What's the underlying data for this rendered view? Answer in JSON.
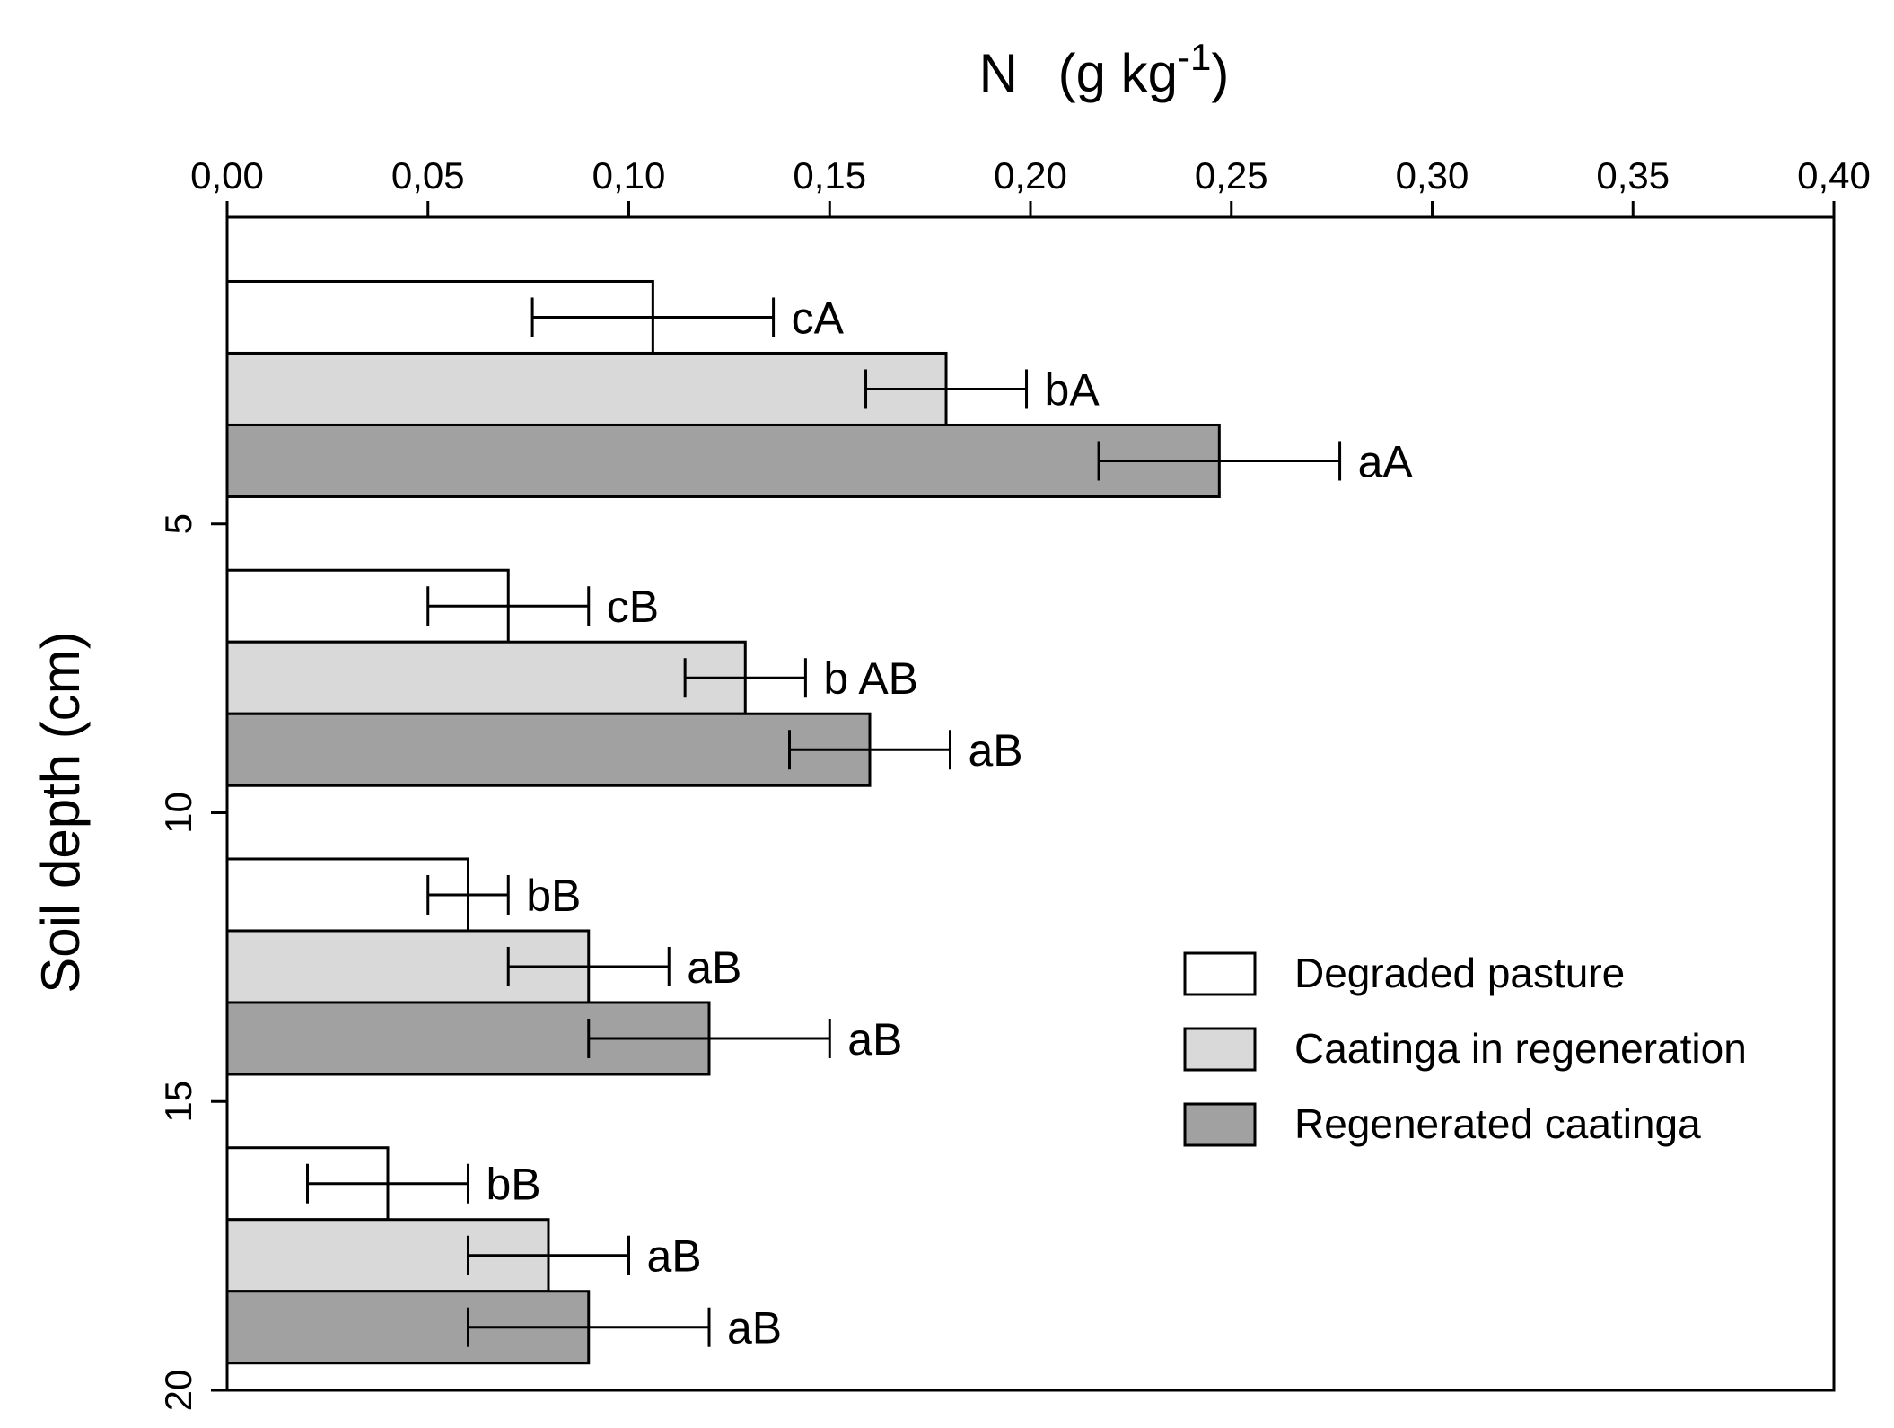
{
  "chart_data": {
    "type": "bar",
    "orientation": "horizontal",
    "title": "",
    "xlabel": "N",
    "xlabel_unit_prefix": "(g kg",
    "xlabel_unit_sup": "-1",
    "xlabel_unit_suffix": ")",
    "ylabel": "Soil depth (cm)",
    "xlim": [
      0,
      0.4
    ],
    "ylim": [
      0,
      20
    ],
    "x_ticks": [
      "0,00",
      "0,05",
      "0,10",
      "0,15",
      "0,20",
      "0,25",
      "0,30",
      "0,35",
      "0,40"
    ],
    "y_ticks": [
      "5",
      "10",
      "15",
      "20"
    ],
    "categories": [
      "0-5",
      "5-10",
      "10-15",
      "15-20"
    ],
    "legend_position": "lower-right",
    "colors": {
      "Degraded pasture": "#ffffff",
      "Caatinga in regeneration": "#d9d9d9",
      "Regenerated caatinga": "#a1a1a1",
      "stroke": "#000000"
    },
    "series": [
      {
        "name": "Degraded pasture",
        "values": [
          0.106,
          0.07,
          0.06,
          0.04
        ],
        "errors": [
          0.03,
          0.02,
          0.01,
          0.02
        ],
        "labels": [
          "cA",
          "cB",
          "bB",
          "bB"
        ]
      },
      {
        "name": "Caatinga in regeneration",
        "values": [
          0.179,
          0.129,
          0.09,
          0.08
        ],
        "errors": [
          0.02,
          0.015,
          0.02,
          0.02
        ],
        "labels": [
          "bA",
          "b AB",
          "aB",
          "aB"
        ]
      },
      {
        "name": "Regenerated caatinga",
        "values": [
          0.247,
          0.16,
          0.12,
          0.09
        ],
        "errors": [
          0.03,
          0.02,
          0.03,
          0.03
        ],
        "labels": [
          "aA",
          "aB",
          "aB",
          "aB"
        ]
      }
    ]
  }
}
